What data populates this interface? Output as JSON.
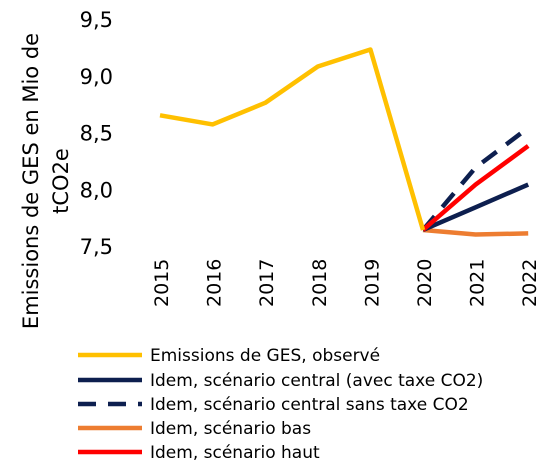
{
  "chart_data": {
    "type": "line",
    "title": "",
    "xlabel": "",
    "ylabel": "Emissions de GES en Mio de tCO2e",
    "ylabel_lines": [
      "Emissions de GES en Mio de",
      "tCO2e"
    ],
    "categories": [
      "2015",
      "2016",
      "2017",
      "2018",
      "2019",
      "2020",
      "2021",
      "2022"
    ],
    "ylim": [
      7.5,
      9.5
    ],
    "yticks": [
      7.5,
      8.0,
      8.5,
      9.0,
      9.5
    ],
    "ytick_labels": [
      "7,5",
      "8,0",
      "8,5",
      "9,0",
      "9,5"
    ],
    "grid": false,
    "legend_position": "bottom",
    "series": [
      {
        "name": "Emissions de GES, observé",
        "color": "#FFC000",
        "dash": "solid",
        "values": [
          8.66,
          8.58,
          8.77,
          9.09,
          9.24,
          7.65,
          null,
          null
        ]
      },
      {
        "name": "Idem, scénario central (avec taxe CO2)",
        "color": "#0D1F4F",
        "dash": "solid",
        "values": [
          null,
          null,
          null,
          null,
          null,
          7.65,
          7.85,
          8.05
        ]
      },
      {
        "name": "Idem, scénario central sans taxe CO2",
        "color": "#0D1F4F",
        "dash": "dashed",
        "values": [
          null,
          null,
          null,
          null,
          null,
          7.65,
          8.2,
          8.55
        ]
      },
      {
        "name": "Idem, scénario bas",
        "color": "#ED7D31",
        "dash": "solid",
        "values": [
          null,
          null,
          null,
          null,
          null,
          7.65,
          7.61,
          7.62
        ]
      },
      {
        "name": "Idem, scénario haut",
        "color": "#FF0000",
        "dash": "solid",
        "values": [
          null,
          null,
          null,
          null,
          null,
          7.65,
          8.05,
          8.39
        ]
      }
    ]
  }
}
